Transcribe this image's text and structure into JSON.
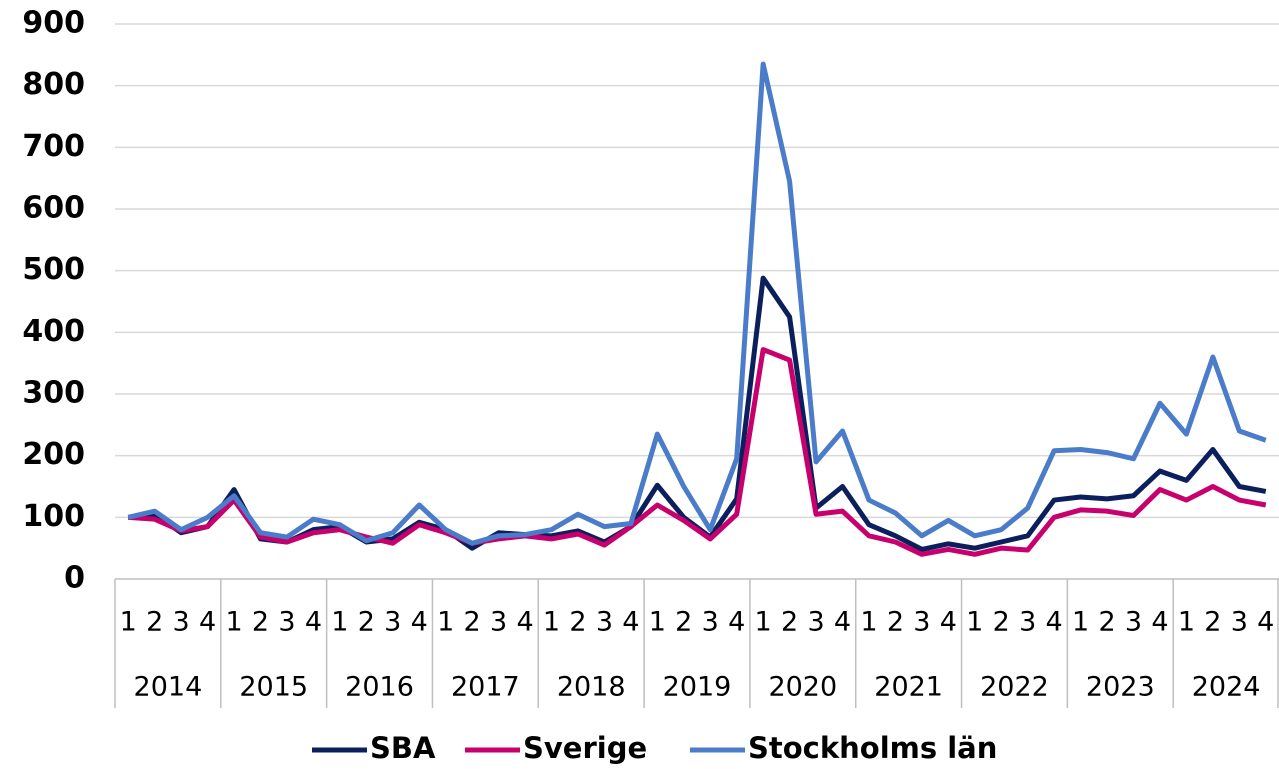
{
  "chart_data": {
    "type": "line",
    "categories": [
      "1",
      "2",
      "3",
      "4",
      "1",
      "2",
      "3",
      "4",
      "1",
      "2",
      "3",
      "4",
      "1",
      "2",
      "3",
      "4",
      "1",
      "2",
      "3",
      "4",
      "1",
      "2",
      "3",
      "4",
      "1",
      "2",
      "3",
      "4",
      "1",
      "2",
      "3",
      "4",
      "1",
      "2",
      "3",
      "4",
      "1",
      "2",
      "3",
      "4",
      "1",
      "2",
      "3",
      "4"
    ],
    "groups": [
      "2014",
      "2015",
      "2016",
      "2017",
      "2018",
      "2019",
      "2020",
      "2021",
      "2022",
      "2023",
      "2024"
    ],
    "series": [
      {
        "name": "SBA",
        "color": "#0b1f5c",
        "values": [
          100,
          105,
          75,
          85,
          145,
          65,
          60,
          80,
          85,
          60,
          65,
          92,
          80,
          50,
          75,
          72,
          70,
          78,
          60,
          85,
          152,
          100,
          68,
          130,
          488,
          425,
          115,
          150,
          88,
          70,
          48,
          57,
          50,
          60,
          70,
          128,
          133,
          130,
          135,
          175,
          160,
          210,
          150,
          142
        ]
      },
      {
        "name": "Sverige",
        "color": "#c8006e",
        "values": [
          100,
          97,
          78,
          85,
          128,
          68,
          60,
          75,
          80,
          68,
          58,
          88,
          75,
          58,
          65,
          70,
          65,
          73,
          55,
          85,
          120,
          95,
          65,
          105,
          372,
          355,
          105,
          110,
          70,
          60,
          40,
          48,
          40,
          50,
          47,
          100,
          112,
          110,
          103,
          145,
          128,
          150,
          128,
          120
        ]
      },
      {
        "name": "Stockholms län",
        "color": "#4a7cc9",
        "values": [
          100,
          110,
          80,
          100,
          135,
          75,
          68,
          97,
          88,
          62,
          75,
          120,
          80,
          58,
          70,
          72,
          80,
          105,
          85,
          90,
          235,
          150,
          80,
          195,
          835,
          645,
          190,
          240,
          128,
          107,
          70,
          95,
          70,
          80,
          115,
          208,
          210,
          205,
          195,
          285,
          235,
          360,
          240,
          225
        ]
      }
    ],
    "ylim": [
      0,
      900
    ],
    "yticks": [
      0,
      100,
      200,
      300,
      400,
      500,
      600,
      700,
      800,
      900
    ],
    "grid": true
  }
}
